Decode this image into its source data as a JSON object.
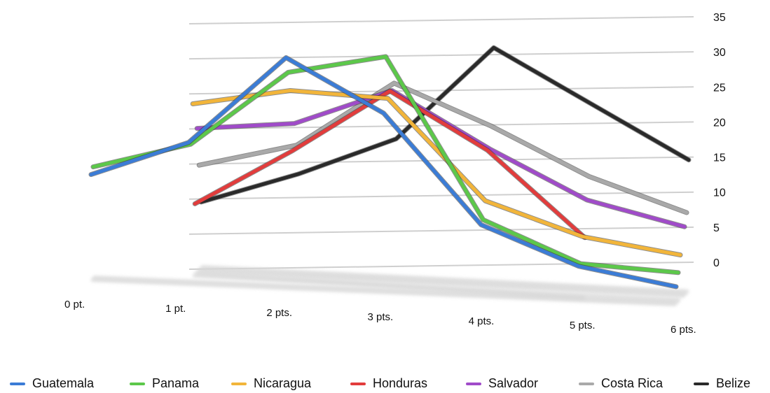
{
  "chart_data": {
    "type": "line",
    "categories": [
      "0 pt.",
      "1 pt.",
      "2 pts.",
      "3 pts.",
      "4 pts.",
      "5 pts.",
      "6 pts."
    ],
    "ylim": [
      0,
      35
    ],
    "yticks": [
      "0",
      "5",
      "10",
      "15",
      "20",
      "25",
      "30",
      "35"
    ],
    "grid": true,
    "legend": "bottom",
    "series": [
      {
        "name": "Guatemala",
        "color": "#3b7cd6",
        "values": [
          12.5,
          18,
          31,
          24,
          9,
          4,
          2
        ]
      },
      {
        "name": "Panama",
        "color": "#5cc84a",
        "values": [
          13,
          17,
          28,
          31,
          8.5,
          3,
          2.5
        ]
      },
      {
        "name": "Nicaragua",
        "color": "#f2b53a",
        "values": [
          null,
          22,
          24.5,
          24,
          10,
          5.5,
          3.5
        ]
      },
      {
        "name": "Honduras",
        "color": "#e23c3c",
        "values": [
          null,
          7,
          15,
          24,
          16,
          4,
          null
        ]
      },
      {
        "name": "Salvador",
        "color": "#a04bc9",
        "values": [
          null,
          17,
          18,
          23,
          15,
          8,
          4.5
        ]
      },
      {
        "name": "Costa Rica",
        "color": "#a9a9a9",
        "values": [
          null,
          11,
          14,
          23,
          17,
          10,
          5
        ]
      },
      {
        "name": "Belize",
        "color": "#2a2a2a",
        "values": [
          null,
          5,
          9,
          14,
          27,
          19,
          11
        ]
      }
    ]
  }
}
